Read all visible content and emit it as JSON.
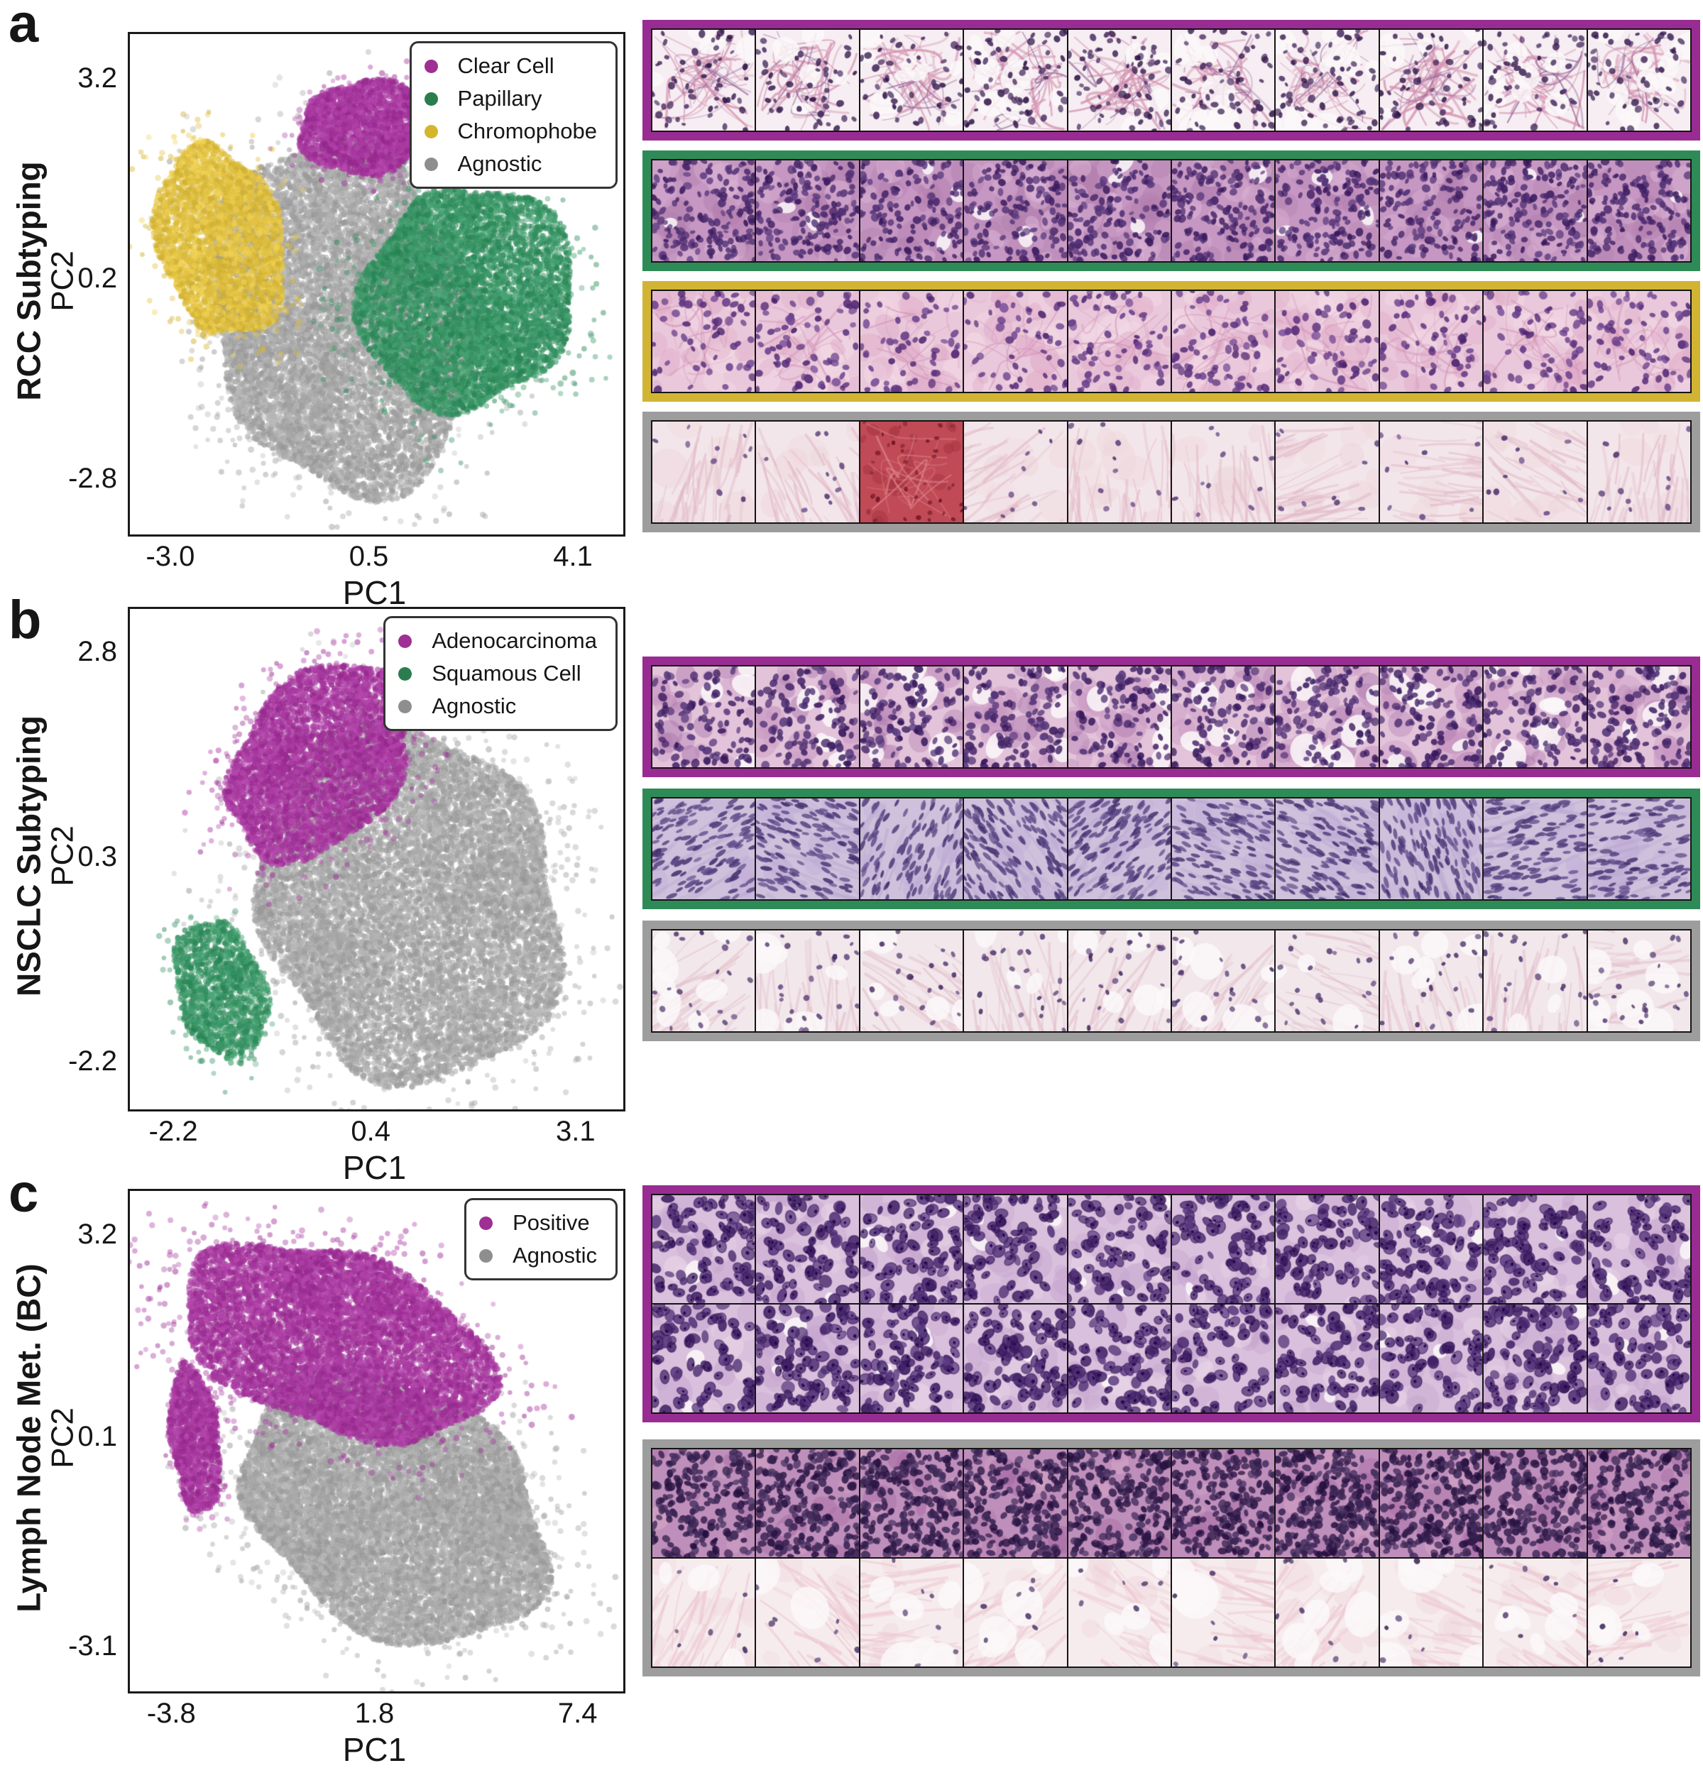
{
  "figure": {
    "kind": "multi-panel-scientific-figure",
    "background": "#ffffff"
  },
  "panels": [
    {
      "letter": "a",
      "title": "RCC Subtyping",
      "xlabel": "PC1",
      "ylabel": "PC2",
      "xticks": [
        "-3.0",
        "0.5",
        "4.1"
      ],
      "yticks": [
        "3.2",
        "0.2",
        "-2.8"
      ],
      "legend": [
        {
          "label": "Clear Cell",
          "color": "#9e2f93"
        },
        {
          "label": "Papillary",
          "color": "#2b7c4f"
        },
        {
          "label": "Chromophobe",
          "color": "#d4b62e"
        },
        {
          "label": "Agnostic",
          "color": "#8e8e8e"
        }
      ],
      "image_rows": [
        {
          "name": "clear-cell-patches",
          "border_color": "#982c92",
          "rows": 1,
          "tiles": 10,
          "styles": [
            "clearcell"
          ]
        },
        {
          "name": "papillary-patches",
          "border_color": "#2e8b57",
          "rows": 1,
          "tiles": 10,
          "styles": [
            "papillary"
          ]
        },
        {
          "name": "chromophobe-patches",
          "border_color": "#d2b435",
          "rows": 1,
          "tiles": 10,
          "styles": [
            "chromophobe"
          ]
        },
        {
          "name": "agnostic-patches",
          "border_color": "#9d9d9d",
          "rows": 1,
          "tiles": 10,
          "styles": [
            "stroma_rcc"
          ],
          "overrides": {
            "0-2": "blood"
          }
        }
      ]
    },
    {
      "letter": "b",
      "title": "NSCLC Subtyping",
      "xlabel": "PC1",
      "ylabel": "PC2",
      "xticks": [
        "-2.2",
        "0.4",
        "3.1"
      ],
      "yticks": [
        "2.8",
        "0.3",
        "-2.2"
      ],
      "legend": [
        {
          "label": "Adenocarcinoma",
          "color": "#9e2f93"
        },
        {
          "label": "Squamous Cell",
          "color": "#2b7c4f"
        },
        {
          "label": "Agnostic",
          "color": "#8e8e8e"
        }
      ],
      "image_rows": [
        {
          "name": "adenocarcinoma-patches",
          "border_color": "#982c92",
          "rows": 1,
          "tiles": 10,
          "styles": [
            "adeno"
          ]
        },
        {
          "name": "squamous-patches",
          "border_color": "#2e8b57",
          "rows": 1,
          "tiles": 10,
          "styles": [
            "squamous"
          ]
        },
        {
          "name": "agnostic-patches",
          "border_color": "#9d9d9d",
          "rows": 1,
          "tiles": 10,
          "styles": [
            "stroma_lung"
          ]
        }
      ]
    },
    {
      "letter": "c",
      "title": "Lymph Node Met. (BC)",
      "xlabel": "PC1",
      "ylabel": "PC2",
      "xticks": [
        "-3.8",
        "1.8",
        "7.4"
      ],
      "yticks": [
        "3.2",
        "0.1",
        "-3.1"
      ],
      "legend": [
        {
          "label": "Positive",
          "color": "#9e2f93"
        },
        {
          "label": "Agnostic",
          "color": "#8e8e8e"
        }
      ],
      "image_rows": [
        {
          "name": "positive-patches",
          "border_color": "#982c92",
          "rows": 2,
          "tiles": 10,
          "styles": [
            "lnm_tumor",
            "lnm_tumor"
          ]
        },
        {
          "name": "agnostic-patches",
          "border_color": "#9d9d9d",
          "rows": 2,
          "tiles": 10,
          "styles": [
            "lnm_dense",
            "lnm_stroma"
          ]
        }
      ]
    }
  ],
  "chart_data": [
    {
      "type": "scatter",
      "panel": "a",
      "title": "RCC Subtyping",
      "xlabel": "PC1",
      "ylabel": "PC2",
      "xlim": [
        -3.75,
        4.95
      ],
      "ylim": [
        -3.6,
        3.9
      ],
      "xticks": [
        -3.0,
        0.5,
        4.1
      ],
      "yticks": [
        3.2,
        0.2,
        -2.8
      ],
      "grid": false,
      "legend_position": "top-right",
      "legend_entries": [
        "Clear Cell",
        "Papillary",
        "Chromophobe",
        "Agnostic"
      ],
      "clusters": [
        {
          "name": "Agnostic",
          "color": "#ababab",
          "n": 12000,
          "cx": 0.0,
          "cy": -0.35,
          "rx": 2.4,
          "ry": 2.55,
          "rot": 0
        },
        {
          "name": "Chromophobe",
          "color": "#e3c344",
          "n": 3600,
          "cx": -2.15,
          "cy": 0.8,
          "rx": 1.05,
          "ry": 1.52,
          "rot": 10
        },
        {
          "name": "Papillary",
          "color": "#3b9767",
          "n": 6500,
          "cx": 2.2,
          "cy": -0.05,
          "rx": 1.85,
          "ry": 1.7,
          "rot": -18
        },
        {
          "name": "Clear Cell",
          "color": "#a93ba1",
          "n": 2800,
          "cx": 0.4,
          "cy": 2.5,
          "rx": 1.2,
          "ry": 0.68,
          "rot": -4
        }
      ]
    },
    {
      "type": "scatter",
      "panel": "b",
      "title": "NSCLC Subtyping",
      "xlabel": "PC1",
      "ylabel": "PC2",
      "xlim": [
        -2.8,
        3.7
      ],
      "ylim": [
        -2.75,
        3.35
      ],
      "xticks": [
        -2.2,
        0.4,
        3.1
      ],
      "yticks": [
        2.8,
        0.3,
        -2.2
      ],
      "grid": false,
      "legend_position": "top-right",
      "legend_entries": [
        "Adenocarcinoma",
        "Squamous Cell",
        "Agnostic"
      ],
      "clusters": [
        {
          "name": "Agnostic",
          "color": "#ababab",
          "n": 12000,
          "cx": 0.9,
          "cy": -0.25,
          "rx": 2.1,
          "ry": 2.05,
          "rot": 0
        },
        {
          "name": "Adenocarcinoma",
          "color": "#a93ba1",
          "n": 5200,
          "cx": -0.3,
          "cy": 1.5,
          "rx": 1.45,
          "ry": 0.95,
          "rot": 35
        },
        {
          "name": "Squamous Cell",
          "color": "#3b9767",
          "n": 1500,
          "cx": -1.6,
          "cy": -1.3,
          "rx": 0.6,
          "ry": 0.85,
          "rot": 10
        }
      ]
    },
    {
      "type": "scatter",
      "panel": "c",
      "title": "Lymph Node Met. (BC)",
      "xlabel": "PC1",
      "ylabel": "PC2",
      "xlim": [
        -5.0,
        8.6
      ],
      "ylim": [
        -3.75,
        3.9
      ],
      "xticks": [
        -3.8,
        1.8,
        7.4
      ],
      "yticks": [
        3.2,
        0.1,
        -3.1
      ],
      "grid": false,
      "legend_position": "top-right",
      "legend_entries": [
        "Positive",
        "Agnostic"
      ],
      "clusters": [
        {
          "name": "Agnostic",
          "color": "#ababab",
          "n": 13000,
          "cx": 2.3,
          "cy": -0.95,
          "rx": 4.5,
          "ry": 1.85,
          "rot": -7
        },
        {
          "name": "Positive",
          "color": "#a93ba1",
          "n": 9000,
          "cx": 0.7,
          "cy": 1.6,
          "rx": 4.0,
          "ry": 1.5,
          "rot": -9
        },
        {
          "name": "Positive",
          "color": "#a93ba1",
          "n": 1500,
          "cx": -3.2,
          "cy": 0.1,
          "rx": 0.7,
          "ry": 1.1,
          "rot": 10
        }
      ]
    }
  ],
  "tile_styles": {
    "clearcell": {
      "bg": "#f6eef2",
      "lumens": {
        "n": 8,
        "rmin": 10,
        "rmax": 26
      },
      "webs": [
        {
          "color": "#d694b2",
          "n": 20,
          "w": 2.6,
          "alpha": 0.75
        },
        {
          "color": "#8a5a93",
          "n": 7,
          "w": 1.8,
          "alpha": 0.6
        }
      ],
      "nuclei": {
        "color": "#3f2457",
        "n": 55,
        "rmin": 3,
        "rmax": 6
      }
    },
    "papillary": {
      "bg": "#c697c2",
      "blotches": [
        {
          "color": "#b27fae",
          "n": 16,
          "rmin": 10,
          "rmax": 28,
          "alpha": 0.5
        },
        {
          "color": "#ddb7d7",
          "n": 12,
          "rmin": 8,
          "rmax": 22,
          "alpha": 0.5
        }
      ],
      "lumens": {
        "n": 2,
        "rmin": 8,
        "rmax": 16
      },
      "nuclei": {
        "color": "#4a2a6e",
        "n": 150,
        "rmin": 3.5,
        "rmax": 6.5
      }
    },
    "chromophobe": {
      "bg": "#eac8db",
      "blotches": [
        {
          "color": "#f3dae6",
          "n": 12,
          "rmin": 10,
          "rmax": 24,
          "alpha": 0.55
        },
        {
          "color": "#dfa9c7",
          "n": 14,
          "rmin": 8,
          "rmax": 22,
          "alpha": 0.5
        }
      ],
      "webs": [
        {
          "color": "#d08bb1",
          "n": 10,
          "w": 2.0,
          "alpha": 0.5
        }
      ],
      "nuclei": {
        "color": "#5d3380",
        "n": 60,
        "rmin": 4,
        "rmax": 7
      }
    },
    "stroma_rcc": {
      "bg": "#f3e6ea",
      "streaks": {
        "color": "#e2b7c7",
        "n": 36,
        "len": 90,
        "w": 3.2,
        "alpha": 0.55
      },
      "blotches": [
        {
          "color": "#eed6dc",
          "n": 8,
          "rmin": 12,
          "rmax": 30,
          "alpha": 0.5
        }
      ],
      "nuclei": {
        "color": "#5c3f7a",
        "n": 10,
        "rmin": 3,
        "rmax": 5
      }
    },
    "blood": {
      "bg": "#c04a55",
      "blotches": [
        {
          "color": "#a53341",
          "n": 24,
          "rmin": 6,
          "rmax": 14,
          "alpha": 0.6
        }
      ],
      "webs": [
        {
          "color": "#e08a92",
          "n": 12,
          "w": 2.0,
          "alpha": 0.6
        }
      ],
      "nuclei": {
        "color": "#7c1f2d",
        "n": 36,
        "rmin": 2.5,
        "rmax": 4
      }
    },
    "adeno": {
      "bg": "#e3c3da",
      "lumens": {
        "n": 4,
        "rmin": 12,
        "rmax": 26
      },
      "blotches": [
        {
          "color": "#c795c0",
          "n": 15,
          "rmin": 10,
          "rmax": 26,
          "alpha": 0.5
        },
        {
          "color": "#a873ab",
          "n": 8,
          "rmin": 8,
          "rmax": 20,
          "alpha": 0.45
        }
      ],
      "nuclei": {
        "color": "#46276b",
        "n": 115,
        "rmin": 4,
        "rmax": 7
      }
    },
    "squamous": {
      "bg": "#cfc0dc",
      "streaks": {
        "color": "#b9a6d0",
        "n": 24,
        "len": 100,
        "w": 4,
        "alpha": 0.5
      },
      "blotches": [
        {
          "color": "#c3afd8",
          "n": 10,
          "rmin": 10,
          "rmax": 26,
          "alpha": 0.5
        }
      ],
      "nuclei": {
        "color": "#55417f",
        "n": 135,
        "rmin": 3.5,
        "rmax": 6,
        "elong": 2.0
      }
    },
    "stroma_lung": {
      "bg": "#f2e8ec",
      "streaks": {
        "color": "#e4bfcb",
        "n": 32,
        "len": 110,
        "w": 3.2,
        "alpha": 0.6
      },
      "lumens": {
        "n": 5,
        "rmin": 12,
        "rmax": 30
      },
      "nuclei": {
        "color": "#53386f",
        "n": 22,
        "rmin": 3,
        "rmax": 5
      }
    },
    "lnm_tumor": {
      "bg": "#d9c0dd",
      "blotches": [
        {
          "color": "#c6a4ce",
          "n": 13,
          "rmin": 10,
          "rmax": 26,
          "alpha": 0.5
        },
        {
          "color": "#ead8e8",
          "n": 8,
          "rmin": 8,
          "rmax": 20,
          "alpha": 0.5
        }
      ],
      "lumens": {
        "n": 2,
        "rmin": 8,
        "rmax": 18
      },
      "nuclei": {
        "color": "#4d2d72",
        "n": 80,
        "rmin": 6,
        "rmax": 10,
        "rim": true
      }
    },
    "lnm_dense": {
      "bg": "#bf8fbb",
      "blotches": [
        {
          "color": "#a76ba4",
          "n": 8,
          "rmin": 10,
          "rmax": 26,
          "alpha": 0.5
        },
        {
          "color": "#d9a9c9",
          "n": 5,
          "rmin": 8,
          "rmax": 18,
          "alpha": 0.5
        }
      ],
      "nuclei": {
        "color": "#35204f",
        "n": 230,
        "rmin": 4.5,
        "rmax": 7
      }
    },
    "lnm_stroma": {
      "bg": "#f6ecee",
      "streaks": {
        "color": "#edc5cf",
        "n": 28,
        "len": 120,
        "w": 4,
        "alpha": 0.6
      },
      "lumens": {
        "n": 4,
        "rmin": 14,
        "rmax": 34
      },
      "blotches": [
        {
          "color": "#f0d9de",
          "n": 8,
          "rmin": 10,
          "rmax": 26,
          "alpha": 0.5
        }
      ],
      "nuclei": {
        "color": "#4f3a6b",
        "n": 7,
        "rmin": 3,
        "rmax": 5
      }
    }
  }
}
